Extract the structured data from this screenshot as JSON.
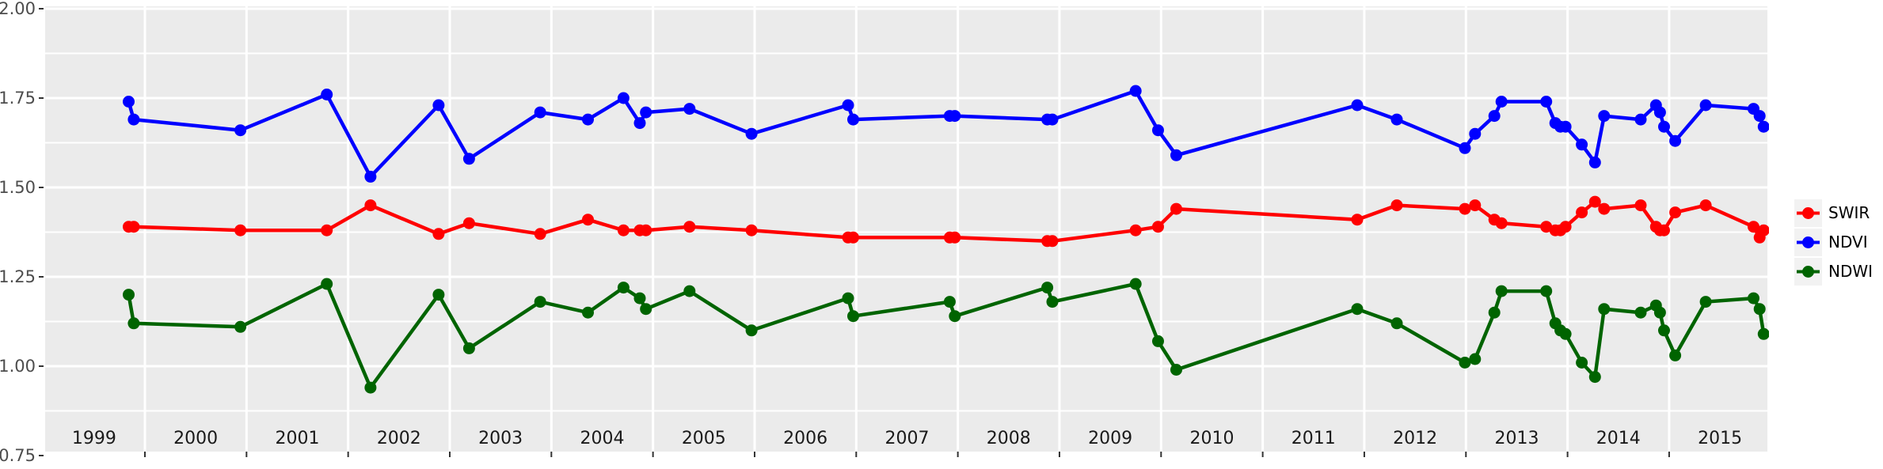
{
  "chart_data": {
    "type": "line",
    "title": "",
    "xlabel": "",
    "ylabel": "",
    "x": [
      1999.84,
      1999.89,
      2000.94,
      2001.79,
      2002.22,
      2002.89,
      2003.19,
      2003.89,
      2004.36,
      2004.71,
      2004.87,
      2004.93,
      2005.36,
      2005.97,
      2006.92,
      2006.97,
      2007.92,
      2007.97,
      2008.88,
      2008.93,
      2009.75,
      2009.97,
      2010.15,
      2011.93,
      2012.32,
      2012.99,
      2013.09,
      2013.28,
      2013.35,
      2013.79,
      2013.88,
      2013.93,
      2013.98,
      2014.14,
      2014.27,
      2014.36,
      2014.72,
      2014.87,
      2014.91,
      2014.95,
      2015.06,
      2015.36,
      2015.83,
      2015.89,
      2015.93
    ],
    "series": [
      {
        "name": "SWIR",
        "color": "#FF0000",
        "values": [
          1.39,
          1.39,
          1.38,
          1.38,
          1.45,
          1.37,
          1.4,
          1.37,
          1.41,
          1.38,
          1.38,
          1.38,
          1.39,
          1.38,
          1.36,
          1.36,
          1.36,
          1.36,
          1.35,
          1.35,
          1.38,
          1.39,
          1.44,
          1.41,
          1.45,
          1.44,
          1.45,
          1.41,
          1.4,
          1.39,
          1.38,
          1.38,
          1.39,
          1.43,
          1.46,
          1.44,
          1.45,
          1.39,
          1.38,
          1.38,
          1.43,
          1.45,
          1.39,
          1.36,
          1.38
        ]
      },
      {
        "name": "NDVI",
        "color": "#0000FF",
        "values": [
          1.74,
          1.69,
          1.66,
          1.76,
          1.53,
          1.73,
          1.58,
          1.71,
          1.69,
          1.75,
          1.68,
          1.71,
          1.72,
          1.65,
          1.73,
          1.69,
          1.7,
          1.7,
          1.69,
          1.69,
          1.77,
          1.66,
          1.59,
          1.73,
          1.69,
          1.61,
          1.65,
          1.7,
          1.74,
          1.74,
          1.68,
          1.67,
          1.67,
          1.62,
          1.57,
          1.7,
          1.69,
          1.73,
          1.71,
          1.67,
          1.63,
          1.73,
          1.72,
          1.7,
          1.67
        ]
      },
      {
        "name": "NDWI",
        "color": "#006400",
        "values": [
          1.2,
          1.12,
          1.11,
          1.23,
          0.94,
          1.2,
          1.05,
          1.18,
          1.15,
          1.22,
          1.19,
          1.16,
          1.21,
          1.1,
          1.19,
          1.14,
          1.18,
          1.14,
          1.22,
          1.18,
          1.23,
          1.07,
          0.99,
          1.16,
          1.12,
          1.01,
          1.02,
          1.15,
          1.21,
          1.21,
          1.12,
          1.1,
          1.09,
          1.01,
          0.97,
          1.16,
          1.15,
          1.17,
          1.15,
          1.1,
          1.03,
          1.18,
          1.19,
          1.16,
          1.09
        ]
      }
    ],
    "x_axis": {
      "tick_years": [
        2000,
        2001,
        2002,
        2003,
        2004,
        2005,
        2006,
        2007,
        2008,
        2009,
        2010,
        2011,
        2012,
        2013,
        2014,
        2015
      ],
      "label_years": [
        "1999",
        "2000",
        "2001",
        "2002",
        "2003",
        "2004",
        "2005",
        "2006",
        "2007",
        "2008",
        "2009",
        "2010",
        "2011",
        "2012",
        "2013",
        "2014",
        "2015"
      ],
      "range": [
        1999.02,
        2015.97
      ],
      "gridlines": "major-only"
    },
    "y_axis": {
      "tick_labels": [
        "2.00",
        "1.75",
        "1.50",
        "1.25",
        "1.00",
        "0.75"
      ],
      "tick_values": [
        2.0,
        1.75,
        1.5,
        1.25,
        1.0,
        0.75
      ],
      "minor_tick_values": [
        1.875,
        1.625,
        1.375,
        1.125,
        0.875
      ],
      "range": [
        0.76,
        2.01
      ],
      "grid": true
    },
    "legend_position": "right"
  },
  "legend": {
    "items": [
      {
        "label": "SWIR",
        "color": "#FF0000"
      },
      {
        "label": "NDVI",
        "color": "#0000FF"
      },
      {
        "label": "NDWI",
        "color": "#006400"
      }
    ]
  },
  "colors": {
    "panel_bg": "#EBEBEB",
    "gridline": "#FFFFFF",
    "y_axis_text": "#4D4D4D",
    "x_axis_text": "#1A1A1A",
    "tick_mark": "#333333",
    "legend_key_bg": "#F2F2F2",
    "background": "#FFFFFF"
  }
}
